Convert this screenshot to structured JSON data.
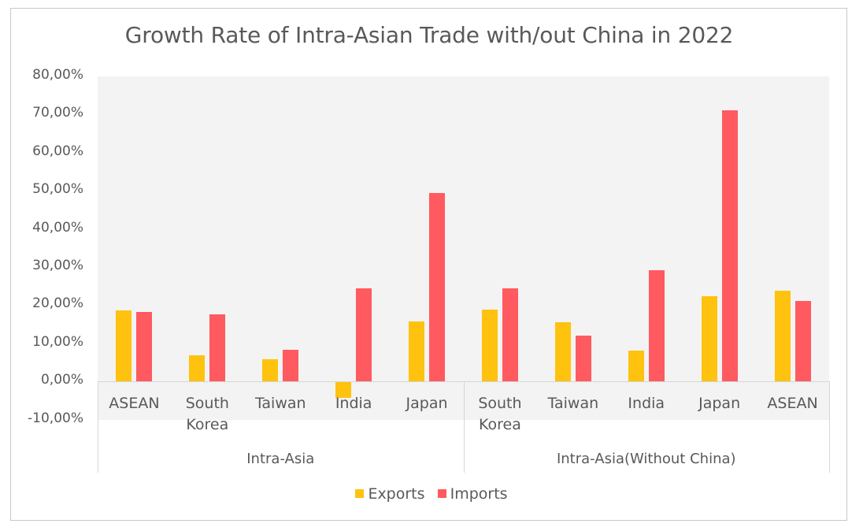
{
  "chart_data": {
    "type": "bar",
    "title": "Growth Rate of Intra-Asian Trade with/out China in 2022",
    "xlabel": "",
    "ylabel": "",
    "ylim": [
      -0.1,
      0.8
    ],
    "y_ticks": [
      "80,00%",
      "70,00%",
      "60,00%",
      "50,00%",
      "40,00%",
      "30,00%",
      "20,00%",
      "10,00%",
      "0,00%",
      "-10,00%"
    ],
    "grid": false,
    "legend_position": "bottom",
    "groups": [
      {
        "label": "Intra-Asia",
        "categories": [
          "ASEAN",
          "South Korea",
          "Taiwan",
          "India",
          "Japan"
        ]
      },
      {
        "label": "Intra-Asia(Without China)",
        "categories": [
          "South Korea",
          "Taiwan",
          "India",
          "Japan",
          "ASEAN"
        ]
      }
    ],
    "categories": [
      "ASEAN",
      "South Korea",
      "Taiwan",
      "India",
      "Japan",
      "South Korea",
      "Taiwan",
      "India",
      "Japan",
      "ASEAN"
    ],
    "series": [
      {
        "name": "Exports",
        "color": "#FFC20E",
        "values": [
          18.6,
          6.9,
          5.8,
          -4.3,
          15.7,
          18.8,
          15.5,
          8.0,
          22.3,
          23.8
        ]
      },
      {
        "name": "Imports",
        "color": "#FF5A5F",
        "values": [
          18.2,
          17.6,
          8.3,
          24.4,
          49.4,
          24.4,
          12.0,
          29.1,
          71.1,
          21.1
        ]
      }
    ],
    "units": "percent"
  },
  "title": "Growth Rate of Intra-Asian Trade with/out China in 2022",
  "yticks": [
    "80,00%",
    "70,00%",
    "60,00%",
    "50,00%",
    "40,00%",
    "30,00%",
    "20,00%",
    "10,00%",
    "0,00%",
    "-10,00%"
  ],
  "categories": [
    {
      "line1": "ASEAN",
      "line2": ""
    },
    {
      "line1": "South",
      "line2": "Korea"
    },
    {
      "line1": "Taiwan",
      "line2": ""
    },
    {
      "line1": "India",
      "line2": ""
    },
    {
      "line1": "Japan",
      "line2": ""
    },
    {
      "line1": "South",
      "line2": "Korea"
    },
    {
      "line1": "Taiwan",
      "line2": ""
    },
    {
      "line1": "India",
      "line2": ""
    },
    {
      "line1": "Japan",
      "line2": ""
    },
    {
      "line1": "ASEAN",
      "line2": ""
    }
  ],
  "groups": [
    "Intra-Asia",
    "Intra-Asia(Without China)"
  ],
  "legend": {
    "exports": "Exports",
    "imports": "Imports"
  },
  "colors": {
    "exports": "#FFC20E",
    "imports": "#FF5A5F",
    "plot_bg": "#F3F3F3",
    "text": "#595959"
  }
}
